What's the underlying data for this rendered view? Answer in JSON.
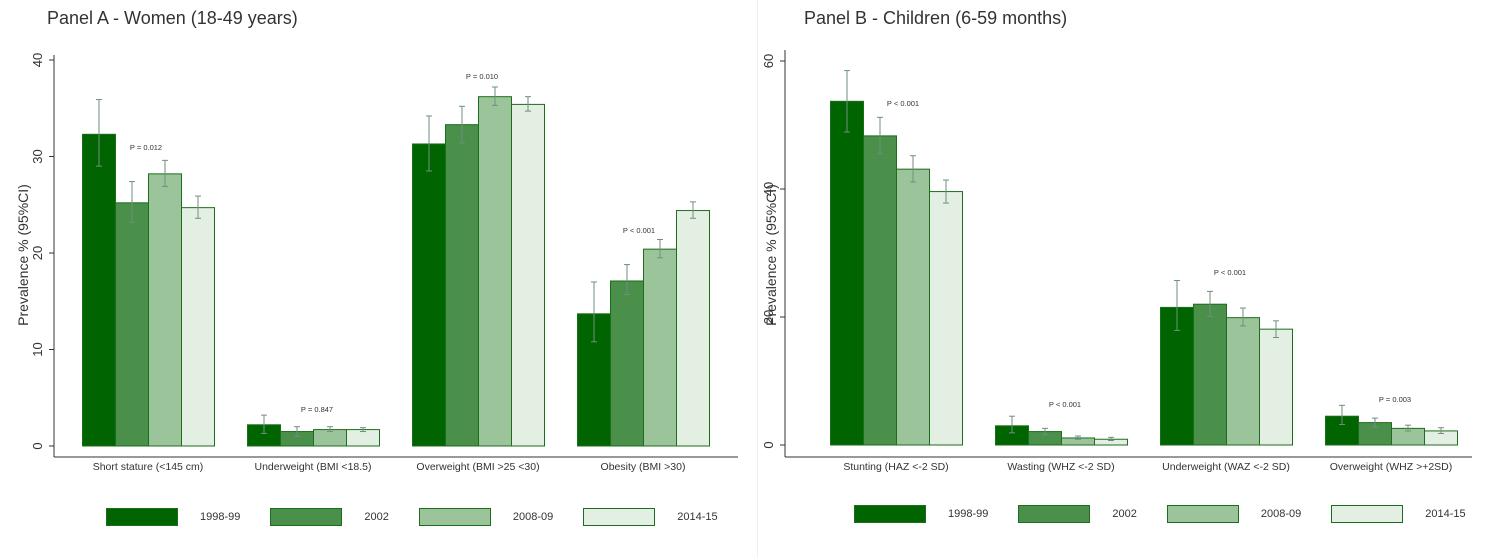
{
  "panel_titles": {
    "a": "Panel A - Women (18-49 years)",
    "b": "Panel B - Children (6-59 months)"
  },
  "colors": {
    "series": [
      "#006400",
      "#4a8f4a",
      "#9cc49a",
      "#e4efe3"
    ],
    "border": "#1b6e1b",
    "errorbar": "#6f8f80",
    "axis": "#333333"
  },
  "legend_labels": [
    "1998-99",
    "2002",
    "2008-09",
    "2014-15"
  ],
  "chart_data": [
    {
      "type": "bar",
      "title": "Panel A - Women (18-49 years)",
      "ylabel": "Prevalence % (95%CI)",
      "ylim": [
        0,
        40
      ],
      "yticks": [
        0,
        10,
        20,
        30,
        40
      ],
      "categories": [
        "Short stature (<145 cm)",
        "Underweight (BMI <18.5)",
        "Overweight (BMI >25 <30)",
        "Obesity (BMI >30)"
      ],
      "series": [
        {
          "name": "1998-99",
          "values": [
            32.3,
            2.2,
            31.3,
            13.7
          ],
          "lower": [
            29.0,
            1.3,
            28.5,
            10.8
          ],
          "upper": [
            35.9,
            3.2,
            34.2,
            17.0
          ]
        },
        {
          "name": "2002",
          "values": [
            25.2,
            1.5,
            33.3,
            17.1
          ],
          "lower": [
            23.2,
            1.0,
            31.4,
            15.7
          ],
          "upper": [
            27.4,
            2.0,
            35.2,
            18.8
          ]
        },
        {
          "name": "2008-09",
          "values": [
            28.2,
            1.7,
            36.2,
            20.4
          ],
          "lower": [
            26.9,
            1.5,
            35.3,
            19.5
          ],
          "upper": [
            29.6,
            2.0,
            37.2,
            21.4
          ]
        },
        {
          "name": "2014-15",
          "values": [
            24.7,
            1.7,
            35.4,
            24.4
          ],
          "lower": [
            23.6,
            1.5,
            34.7,
            23.6
          ],
          "upper": [
            25.9,
            1.9,
            36.2,
            25.3
          ]
        }
      ],
      "pvalues": [
        "P = 0.012",
        "P = 0.847",
        "P = 0.010",
        "P < 0.001"
      ]
    },
    {
      "type": "bar",
      "title": "Panel B - Children (6-59 months)",
      "ylabel": "Prevalence % (95%CI)",
      "ylim": [
        0,
        60
      ],
      "yticks": [
        0,
        20,
        40,
        60
      ],
      "categories": [
        "Stunting (HAZ <-2 SD)",
        "Wasting (WHZ <-2 SD)",
        "Underweight (WAZ <-2 SD)",
        "Overweight (WHZ >+2SD)"
      ],
      "series": [
        {
          "name": "1998-99",
          "values": [
            53.7,
            3.0,
            21.5,
            4.5
          ],
          "lower": [
            48.9,
            1.9,
            17.9,
            3.2
          ],
          "upper": [
            58.5,
            4.5,
            25.7,
            6.2
          ]
        },
        {
          "name": "2002",
          "values": [
            48.3,
            2.1,
            22.0,
            3.5
          ],
          "lower": [
            45.5,
            1.6,
            20.1,
            2.8
          ],
          "upper": [
            51.2,
            2.6,
            24.0,
            4.2
          ]
        },
        {
          "name": "2008-09",
          "values": [
            43.1,
            1.1,
            19.9,
            2.6
          ],
          "lower": [
            41.1,
            0.9,
            18.6,
            2.2
          ],
          "upper": [
            45.2,
            1.4,
            21.4,
            3.1
          ]
        },
        {
          "name": "2014-15",
          "values": [
            39.6,
            0.9,
            18.1,
            2.2
          ],
          "lower": [
            37.8,
            0.7,
            16.8,
            1.8
          ],
          "upper": [
            41.4,
            1.2,
            19.4,
            2.7
          ]
        }
      ],
      "pvalues": [
        "P < 0.001",
        "P < 0.001",
        "P < 0.001",
        "P = 0.003"
      ]
    }
  ]
}
